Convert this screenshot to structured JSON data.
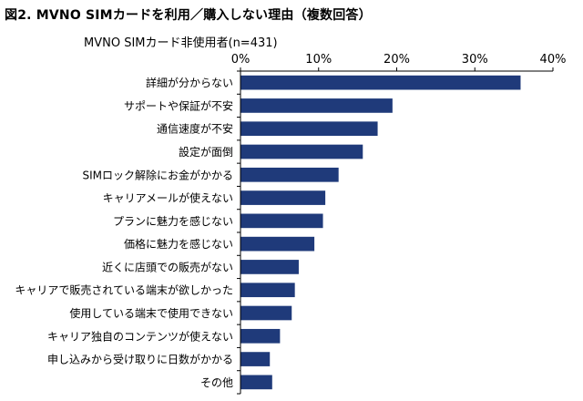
{
  "figure": {
    "title": "図2. MVNO SIMカードを利用／購入しない理由（複数回答）",
    "subtitle": "MVNO SIMカード非使用者(n=431)"
  },
  "colors": {
    "bar": "#1f3a7a",
    "axis": "#000000",
    "grid": "#000000"
  },
  "chart_data": {
    "type": "bar",
    "orientation": "horizontal",
    "title": "MVNO SIMカードを利用／購入しない理由（複数回答）",
    "subtitle": "MVNO SIMカード非使用者(n=431)",
    "xlabel": "",
    "ylabel": "",
    "xlim": [
      0,
      40
    ],
    "ticks": [
      0,
      10,
      20,
      30,
      40
    ],
    "tick_labels": [
      "0%",
      "10%",
      "20%",
      "30%",
      "40%"
    ],
    "grid": false,
    "categories": [
      "詳細が分からない",
      "サポートや保証が不安",
      "通信速度が不安",
      "設定が面倒",
      "SIMロック解除にお金がかかる",
      "キャリアメールが使えない",
      "プランに魅力を感じない",
      "価格に魅力を感じない",
      "近くに店頭での販売がない",
      "キャリアで販売されている端末が欲しかった",
      "使用している端末で使用できない",
      "キャリア独自のコンテンツが使えない",
      "申し込みから受け取りに日数がかかる",
      "その他"
    ],
    "values": [
      35.8,
      19.4,
      17.5,
      15.6,
      12.5,
      10.8,
      10.5,
      9.4,
      7.4,
      6.9,
      6.5,
      5.0,
      3.7,
      4.0
    ]
  }
}
